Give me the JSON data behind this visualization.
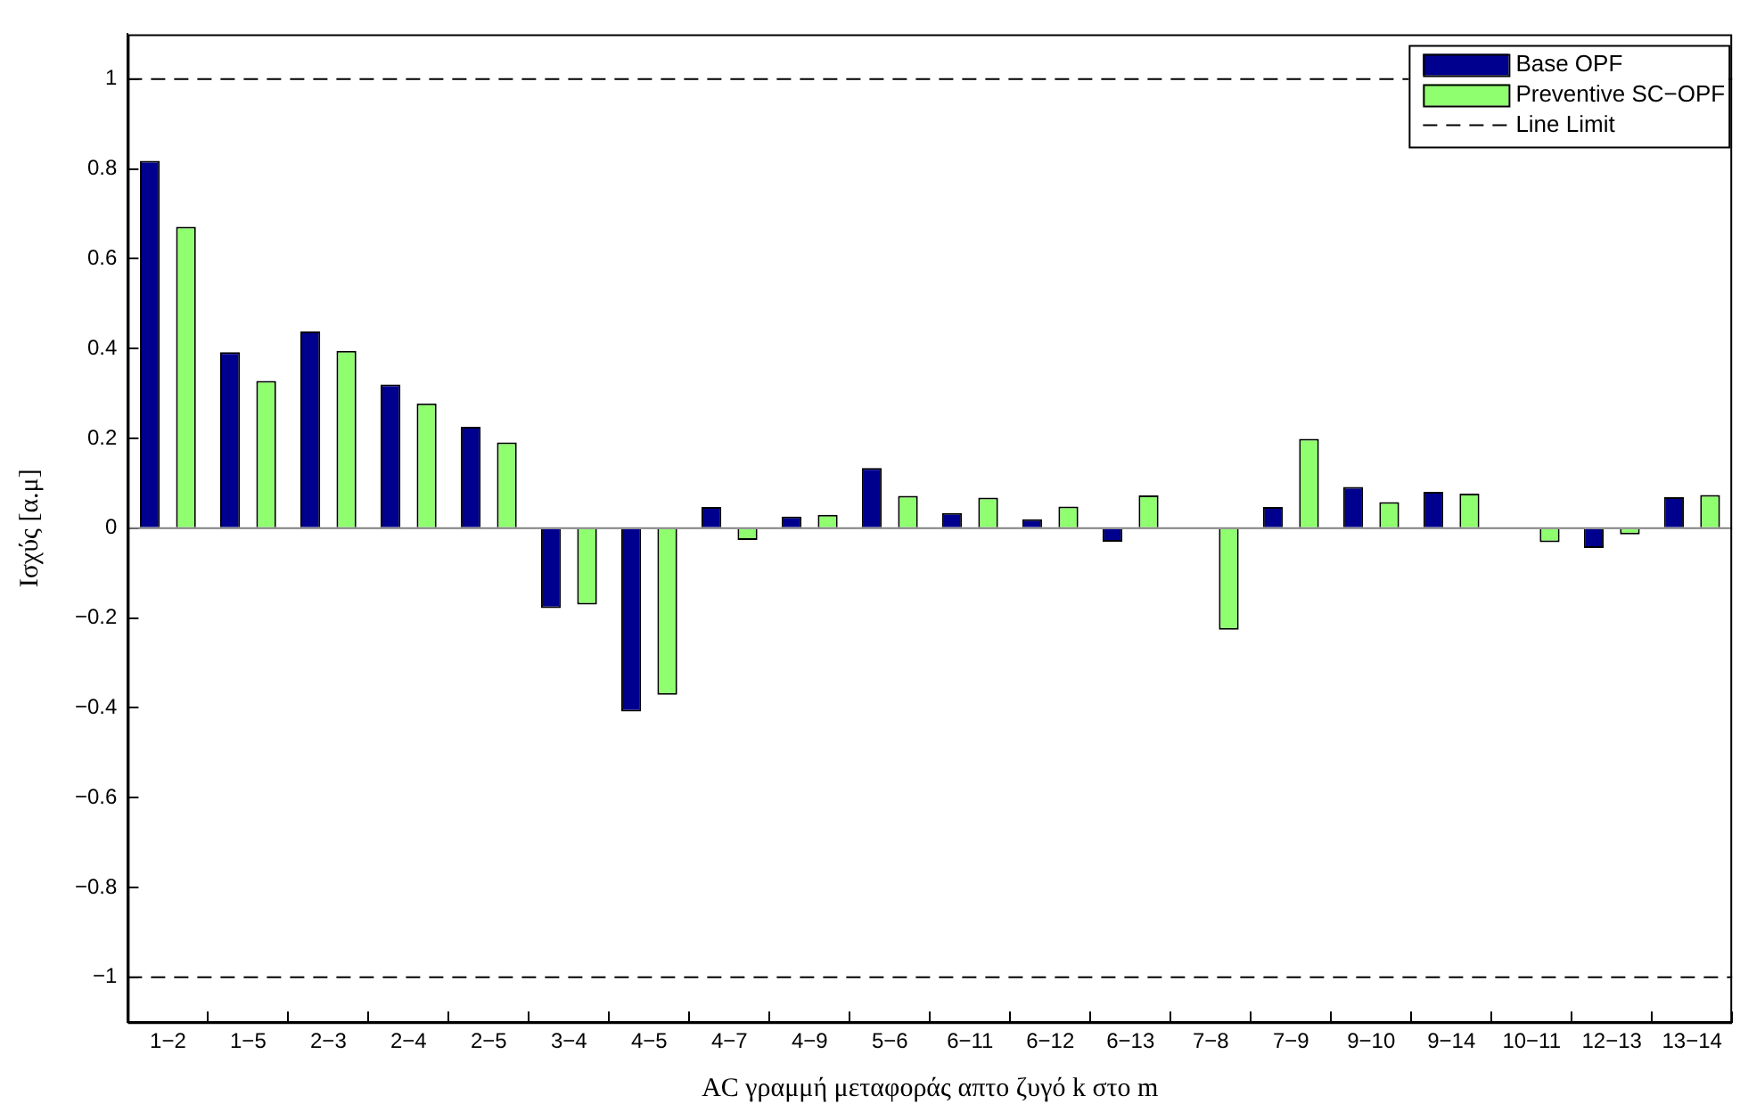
{
  "chart_data": {
    "type": "bar",
    "xlabel": "AC γραμμή μεταφοράς απτο ζυγό k στο m",
    "ylabel": "Ισχύς [α.μ]",
    "categories": [
      "1−2",
      "1−5",
      "2−3",
      "2−4",
      "2−5",
      "3−4",
      "4−5",
      "4−7",
      "4−9",
      "5−6",
      "6−11",
      "6−12",
      "6−13",
      "7−8",
      "7−9",
      "9−10",
      "9−14",
      "10−11",
      "12−13",
      "13−14"
    ],
    "series": [
      {
        "name": "Base OPF",
        "color": "#00008f",
        "values": [
          0.818,
          0.392,
          0.438,
          0.32,
          0.226,
          -0.178,
          -0.408,
          0.047,
          0.026,
          0.134,
          0.034,
          0.02,
          -0.03,
          0,
          0.047,
          0.092,
          0.081,
          0,
          -0.044,
          0.069
        ]
      },
      {
        "name": "Preventive SC−OPF",
        "color": "#8fff6f",
        "values": [
          0.671,
          0.328,
          0.395,
          0.278,
          0.191,
          -0.17,
          -0.371,
          -0.026,
          0.03,
          0.072,
          0.068,
          0.048,
          0.073,
          -0.226,
          0.199,
          0.058,
          0.077,
          -0.031,
          -0.014,
          0.074
        ]
      }
    ],
    "ylim": [
      -1.1,
      1.1
    ],
    "yticks": [
      -1,
      -0.8,
      -0.6,
      -0.4,
      -0.2,
      0,
      0.2,
      0.4,
      0.6,
      0.8,
      1
    ],
    "ref_lines": [
      {
        "axis": "y",
        "value": 1,
        "label": "Line Limit",
        "color": "#000000",
        "line_style": "dashed"
      },
      {
        "axis": "y",
        "value": -1,
        "color": "#000000",
        "line_style": "dashed"
      }
    ],
    "grid": false,
    "legend": "top right"
  }
}
